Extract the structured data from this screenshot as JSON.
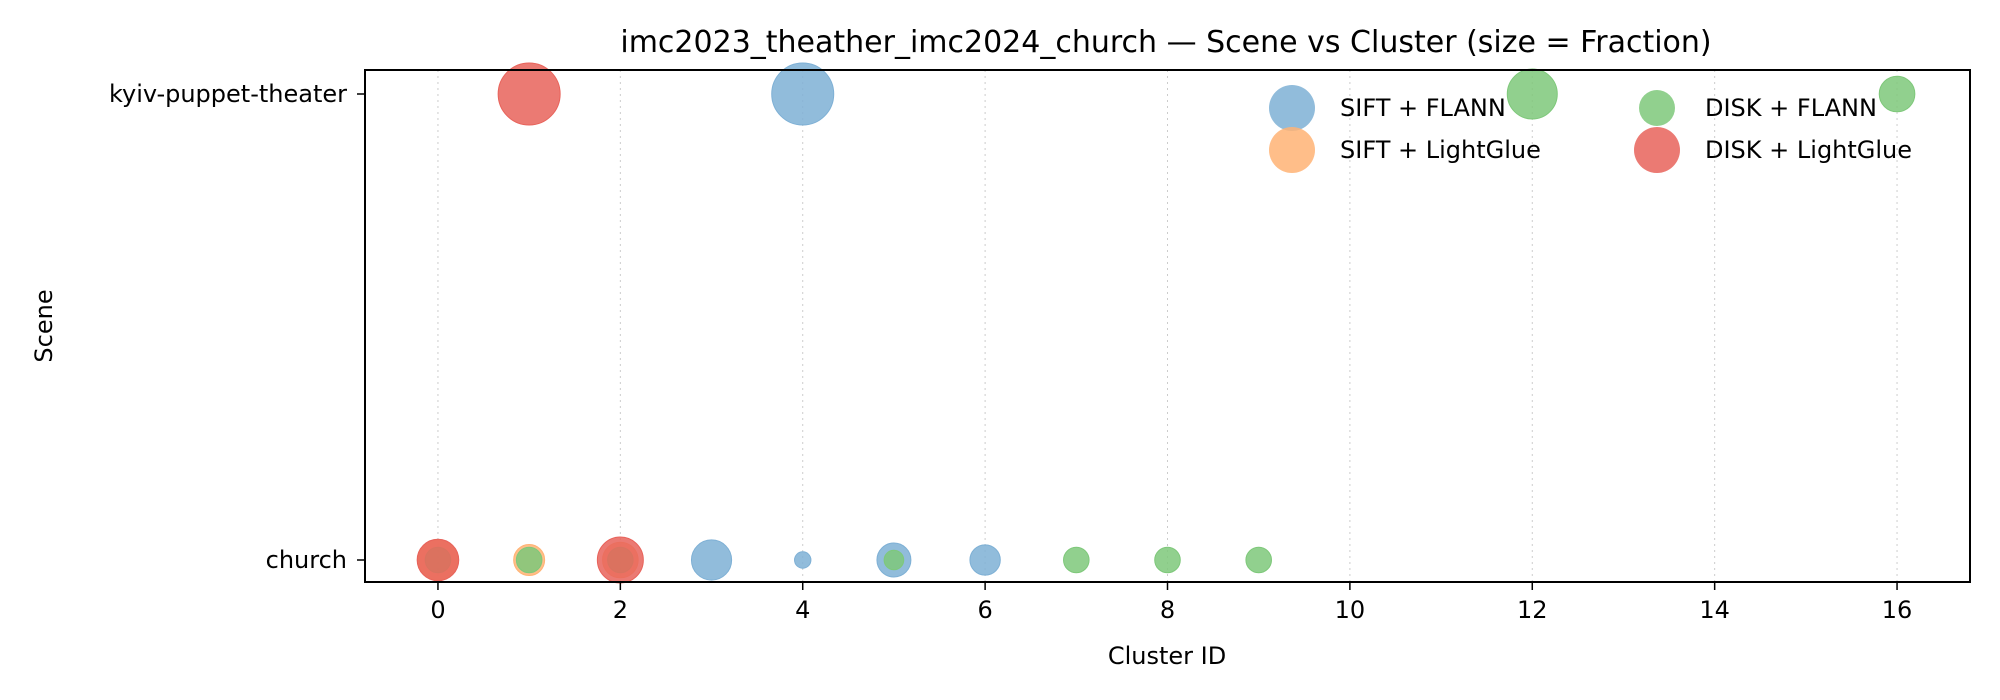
{
  "chart_data": {
    "type": "scatter",
    "title": "imc2023_theather_imc2024_church — Scene vs Cluster (size = Fraction)",
    "xlabel": "Cluster ID",
    "ylabel": "Scene",
    "xlim": [
      -0.8,
      16.8
    ],
    "xticks": [
      0,
      2,
      4,
      6,
      8,
      10,
      12,
      14,
      16
    ],
    "categories": [
      "church",
      "kyiv-puppet-theater"
    ],
    "grid": "vertical-dotted",
    "legend_placement": "top-right",
    "series": [
      {
        "name": "SIFT + FLANN",
        "color": "#7eb0d5",
        "points": [
          {
            "x": 4,
            "y": "kyiv-puppet-theater",
            "fraction": 1.0
          },
          {
            "x": 3,
            "y": "church",
            "fraction": 0.42
          },
          {
            "x": 4,
            "y": "church",
            "fraction": 0.07
          },
          {
            "x": 5,
            "y": "church",
            "fraction": 0.3
          },
          {
            "x": 6,
            "y": "church",
            "fraction": 0.24
          }
        ]
      },
      {
        "name": "SIFT + LightGlue",
        "color": "#ffb374",
        "points": [
          {
            "x": 0,
            "y": "church",
            "fraction": 0.42
          },
          {
            "x": 1,
            "y": "church",
            "fraction": 0.25
          },
          {
            "x": 2,
            "y": "church",
            "fraction": 0.33
          }
        ]
      },
      {
        "name": "DISK + FLANN",
        "color": "#7ec87a",
        "points": [
          {
            "x": 12,
            "y": "kyiv-puppet-theater",
            "fraction": 0.65
          },
          {
            "x": 16,
            "y": "kyiv-puppet-theater",
            "fraction": 0.33
          },
          {
            "x": 0,
            "y": "church",
            "fraction": 0.17
          },
          {
            "x": 1,
            "y": "church",
            "fraction": 0.17
          },
          {
            "x": 2,
            "y": "church",
            "fraction": 0.17
          },
          {
            "x": 5,
            "y": "church",
            "fraction": 0.1
          },
          {
            "x": 7,
            "y": "church",
            "fraction": 0.17
          },
          {
            "x": 8,
            "y": "church",
            "fraction": 0.17
          },
          {
            "x": 9,
            "y": "church",
            "fraction": 0.17
          }
        ]
      },
      {
        "name": "DISK + LightGlue",
        "color": "#e8635b",
        "points": [
          {
            "x": 1,
            "y": "kyiv-puppet-theater",
            "fraction": 1.0
          },
          {
            "x": 0,
            "y": "church",
            "fraction": 0.45
          },
          {
            "x": 2,
            "y": "church",
            "fraction": 0.55
          }
        ]
      }
    ]
  }
}
